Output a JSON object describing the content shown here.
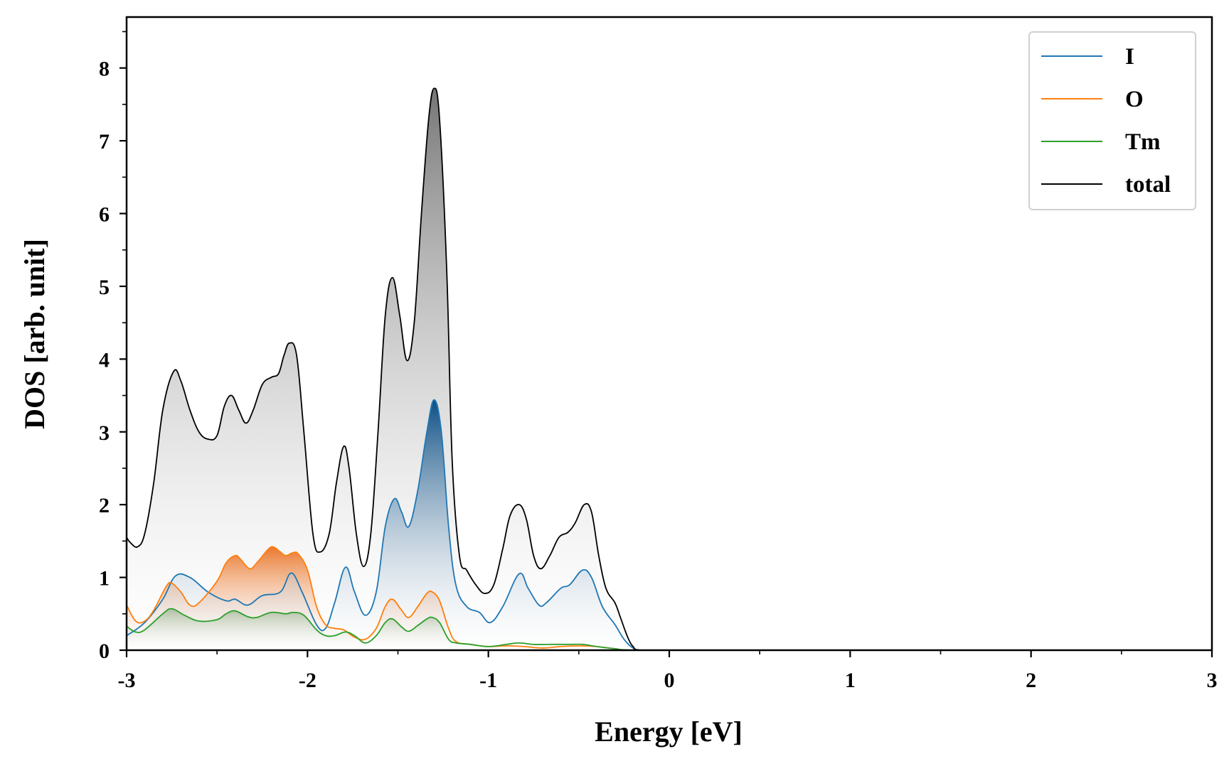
{
  "chart_data": {
    "type": "area",
    "title": "",
    "xlabel": "Energy [eV]",
    "ylabel": "DOS [arb. unit]",
    "xlim": [
      -3,
      3
    ],
    "ylim": [
      0,
      8.7
    ],
    "x_ticks": [
      "-3",
      "-2",
      "-1",
      "0",
      "1",
      "2",
      "3"
    ],
    "y_ticks": [
      "0",
      "1",
      "2",
      "3",
      "4",
      "5",
      "6",
      "7",
      "8"
    ],
    "grid": false,
    "legend_position": "top-right",
    "series": [
      {
        "name": "I",
        "color": "#1f77b4",
        "filled": true,
        "points": [
          [
            -3.0,
            0.2
          ],
          [
            -2.9,
            0.38
          ],
          [
            -2.8,
            0.7
          ],
          [
            -2.73,
            1.02
          ],
          [
            -2.65,
            1.0
          ],
          [
            -2.55,
            0.8
          ],
          [
            -2.45,
            0.68
          ],
          [
            -2.4,
            0.7
          ],
          [
            -2.33,
            0.62
          ],
          [
            -2.25,
            0.75
          ],
          [
            -2.15,
            0.8
          ],
          [
            -2.09,
            1.06
          ],
          [
            -2.03,
            0.8
          ],
          [
            -1.95,
            0.35
          ],
          [
            -1.9,
            0.3
          ],
          [
            -1.85,
            0.65
          ],
          [
            -1.79,
            1.14
          ],
          [
            -1.74,
            0.8
          ],
          [
            -1.68,
            0.48
          ],
          [
            -1.62,
            0.8
          ],
          [
            -1.57,
            1.7
          ],
          [
            -1.52,
            2.08
          ],
          [
            -1.48,
            1.9
          ],
          [
            -1.44,
            1.7
          ],
          [
            -1.39,
            2.2
          ],
          [
            -1.34,
            3.0
          ],
          [
            -1.3,
            3.44
          ],
          [
            -1.26,
            3.0
          ],
          [
            -1.22,
            1.7
          ],
          [
            -1.18,
            0.9
          ],
          [
            -1.12,
            0.6
          ],
          [
            -1.05,
            0.52
          ],
          [
            -0.99,
            0.38
          ],
          [
            -0.92,
            0.6
          ],
          [
            -0.83,
            1.05
          ],
          [
            -0.78,
            0.85
          ],
          [
            -0.72,
            0.62
          ],
          [
            -0.68,
            0.65
          ],
          [
            -0.6,
            0.85
          ],
          [
            -0.55,
            0.9
          ],
          [
            -0.48,
            1.1
          ],
          [
            -0.43,
            1.0
          ],
          [
            -0.37,
            0.6
          ],
          [
            -0.3,
            0.35
          ],
          [
            -0.25,
            0.15
          ],
          [
            -0.2,
            0.03
          ],
          [
            -0.15,
            0.0
          ],
          [
            3.0,
            0.0
          ]
        ]
      },
      {
        "name": "O",
        "color": "#ff7f0e",
        "filled": true,
        "points": [
          [
            -3.0,
            0.62
          ],
          [
            -2.95,
            0.4
          ],
          [
            -2.9,
            0.4
          ],
          [
            -2.85,
            0.55
          ],
          [
            -2.78,
            0.88
          ],
          [
            -2.75,
            0.92
          ],
          [
            -2.7,
            0.8
          ],
          [
            -2.65,
            0.62
          ],
          [
            -2.6,
            0.65
          ],
          [
            -2.5,
            0.95
          ],
          [
            -2.45,
            1.2
          ],
          [
            -2.4,
            1.3
          ],
          [
            -2.37,
            1.25
          ],
          [
            -2.32,
            1.12
          ],
          [
            -2.28,
            1.2
          ],
          [
            -2.22,
            1.38
          ],
          [
            -2.19,
            1.42
          ],
          [
            -2.15,
            1.35
          ],
          [
            -2.12,
            1.3
          ],
          [
            -2.08,
            1.34
          ],
          [
            -2.05,
            1.32
          ],
          [
            -2.0,
            1.1
          ],
          [
            -1.95,
            0.6
          ],
          [
            -1.9,
            0.35
          ],
          [
            -1.85,
            0.3
          ],
          [
            -1.8,
            0.28
          ],
          [
            -1.74,
            0.18
          ],
          [
            -1.68,
            0.15
          ],
          [
            -1.62,
            0.3
          ],
          [
            -1.57,
            0.6
          ],
          [
            -1.53,
            0.7
          ],
          [
            -1.48,
            0.55
          ],
          [
            -1.44,
            0.45
          ],
          [
            -1.39,
            0.6
          ],
          [
            -1.34,
            0.78
          ],
          [
            -1.31,
            0.8
          ],
          [
            -1.27,
            0.68
          ],
          [
            -1.22,
            0.3
          ],
          [
            -1.18,
            0.12
          ],
          [
            -1.1,
            0.08
          ],
          [
            -1.0,
            0.05
          ],
          [
            -0.9,
            0.06
          ],
          [
            -0.8,
            0.05
          ],
          [
            -0.7,
            0.03
          ],
          [
            -0.6,
            0.05
          ],
          [
            -0.5,
            0.06
          ],
          [
            -0.4,
            0.05
          ],
          [
            -0.3,
            0.02
          ],
          [
            -0.2,
            0.0
          ],
          [
            3.0,
            0.0
          ]
        ]
      },
      {
        "name": "Tm",
        "color": "#2ca02c",
        "filled": true,
        "points": [
          [
            -3.0,
            0.33
          ],
          [
            -2.95,
            0.25
          ],
          [
            -2.9,
            0.28
          ],
          [
            -2.8,
            0.5
          ],
          [
            -2.75,
            0.57
          ],
          [
            -2.68,
            0.48
          ],
          [
            -2.6,
            0.4
          ],
          [
            -2.5,
            0.42
          ],
          [
            -2.45,
            0.5
          ],
          [
            -2.4,
            0.54
          ],
          [
            -2.33,
            0.46
          ],
          [
            -2.28,
            0.45
          ],
          [
            -2.2,
            0.52
          ],
          [
            -2.12,
            0.5
          ],
          [
            -2.08,
            0.52
          ],
          [
            -2.02,
            0.48
          ],
          [
            -1.95,
            0.28
          ],
          [
            -1.9,
            0.2
          ],
          [
            -1.85,
            0.2
          ],
          [
            -1.79,
            0.25
          ],
          [
            -1.74,
            0.2
          ],
          [
            -1.68,
            0.1
          ],
          [
            -1.62,
            0.2
          ],
          [
            -1.57,
            0.38
          ],
          [
            -1.53,
            0.43
          ],
          [
            -1.48,
            0.32
          ],
          [
            -1.44,
            0.26
          ],
          [
            -1.39,
            0.34
          ],
          [
            -1.34,
            0.43
          ],
          [
            -1.31,
            0.45
          ],
          [
            -1.27,
            0.38
          ],
          [
            -1.22,
            0.15
          ],
          [
            -1.18,
            0.1
          ],
          [
            -1.1,
            0.08
          ],
          [
            -1.0,
            0.05
          ],
          [
            -0.9,
            0.08
          ],
          [
            -0.83,
            0.1
          ],
          [
            -0.75,
            0.08
          ],
          [
            -0.65,
            0.08
          ],
          [
            -0.55,
            0.08
          ],
          [
            -0.48,
            0.08
          ],
          [
            -0.4,
            0.05
          ],
          [
            -0.3,
            0.02
          ],
          [
            -0.2,
            0.0
          ],
          [
            3.0,
            0.0
          ]
        ]
      },
      {
        "name": "total",
        "color": "#000000",
        "filled": true,
        "points": [
          [
            -3.0,
            1.55
          ],
          [
            -2.98,
            1.48
          ],
          [
            -2.94,
            1.42
          ],
          [
            -2.9,
            1.6
          ],
          [
            -2.85,
            2.3
          ],
          [
            -2.8,
            3.3
          ],
          [
            -2.74,
            3.83
          ],
          [
            -2.7,
            3.7
          ],
          [
            -2.65,
            3.3
          ],
          [
            -2.6,
            3.0
          ],
          [
            -2.55,
            2.9
          ],
          [
            -2.5,
            2.95
          ],
          [
            -2.46,
            3.35
          ],
          [
            -2.42,
            3.5
          ],
          [
            -2.38,
            3.3
          ],
          [
            -2.34,
            3.12
          ],
          [
            -2.3,
            3.3
          ],
          [
            -2.25,
            3.65
          ],
          [
            -2.2,
            3.75
          ],
          [
            -2.16,
            3.8
          ],
          [
            -2.13,
            4.05
          ],
          [
            -2.1,
            4.22
          ],
          [
            -2.06,
            4.05
          ],
          [
            -2.02,
            3.0
          ],
          [
            -1.97,
            1.6
          ],
          [
            -1.93,
            1.35
          ],
          [
            -1.88,
            1.6
          ],
          [
            -1.84,
            2.3
          ],
          [
            -1.8,
            2.8
          ],
          [
            -1.77,
            2.5
          ],
          [
            -1.73,
            1.6
          ],
          [
            -1.69,
            1.15
          ],
          [
            -1.65,
            1.6
          ],
          [
            -1.61,
            3.0
          ],
          [
            -1.57,
            4.6
          ],
          [
            -1.53,
            5.12
          ],
          [
            -1.49,
            4.6
          ],
          [
            -1.45,
            3.98
          ],
          [
            -1.41,
            4.5
          ],
          [
            -1.37,
            6.0
          ],
          [
            -1.33,
            7.3
          ],
          [
            -1.3,
            7.72
          ],
          [
            -1.27,
            7.3
          ],
          [
            -1.23,
            5.2
          ],
          [
            -1.2,
            2.6
          ],
          [
            -1.16,
            1.3
          ],
          [
            -1.12,
            1.1
          ],
          [
            -1.07,
            0.9
          ],
          [
            -1.02,
            0.78
          ],
          [
            -0.97,
            0.9
          ],
          [
            -0.92,
            1.4
          ],
          [
            -0.88,
            1.85
          ],
          [
            -0.83,
            2.0
          ],
          [
            -0.79,
            1.8
          ],
          [
            -0.75,
            1.3
          ],
          [
            -0.71,
            1.12
          ],
          [
            -0.66,
            1.3
          ],
          [
            -0.61,
            1.55
          ],
          [
            -0.56,
            1.62
          ],
          [
            -0.52,
            1.75
          ],
          [
            -0.47,
            2.0
          ],
          [
            -0.43,
            1.9
          ],
          [
            -0.39,
            1.3
          ],
          [
            -0.35,
            0.85
          ],
          [
            -0.3,
            0.65
          ],
          [
            -0.27,
            0.45
          ],
          [
            -0.23,
            0.18
          ],
          [
            -0.2,
            0.05
          ],
          [
            -0.16,
            0.0
          ],
          [
            3.0,
            0.0
          ]
        ]
      }
    ]
  }
}
